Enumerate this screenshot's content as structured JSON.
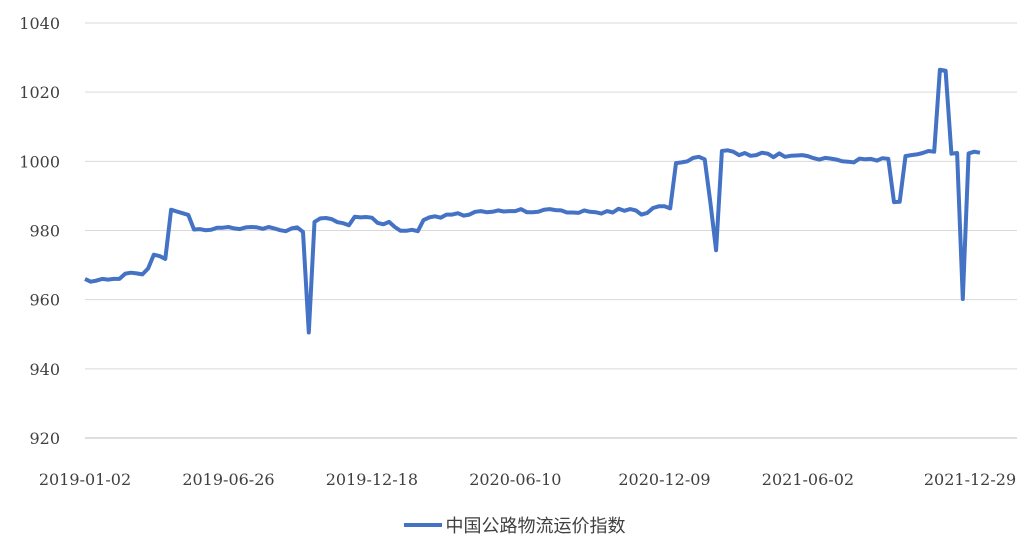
{
  "chart_data": {
    "type": "line",
    "title": "",
    "xlabel": "",
    "ylabel": "",
    "ylim": [
      920,
      1040
    ],
    "y_ticks": [
      920,
      940,
      960,
      980,
      1000,
      1020,
      1040
    ],
    "x_start": "2019-01-02",
    "x_end": "2022-01-26",
    "x_tick_labels": [
      "2019-01-02",
      "2019-06-26",
      "2019-12-18",
      "2020-06-10",
      "2020-12-09",
      "2021-06-02",
      "2021-12-29"
    ],
    "grid": "horizontal",
    "legend_position": "bottom",
    "line_color": "#4472C4",
    "series": [
      {
        "name": "中国公路物流运价指数",
        "points": [
          [
            "2019-01-02",
            966.0
          ],
          [
            "2019-01-09",
            965.2
          ],
          [
            "2019-01-16",
            965.5
          ],
          [
            "2019-01-23",
            966.0
          ],
          [
            "2019-01-30",
            965.8
          ],
          [
            "2019-02-06",
            966.0
          ],
          [
            "2019-02-13",
            966.0
          ],
          [
            "2019-02-20",
            967.5
          ],
          [
            "2019-02-27",
            967.8
          ],
          [
            "2019-03-06",
            967.6
          ],
          [
            "2019-03-13",
            967.3
          ],
          [
            "2019-03-20",
            969.0
          ],
          [
            "2019-03-27",
            973.0
          ],
          [
            "2019-04-03",
            972.6
          ],
          [
            "2019-04-10",
            971.8
          ],
          [
            "2019-04-17",
            986.0
          ],
          [
            "2019-04-24",
            985.5
          ],
          [
            "2019-05-01",
            985.0
          ],
          [
            "2019-05-08",
            984.5
          ],
          [
            "2019-05-15",
            980.3
          ],
          [
            "2019-05-22",
            980.4
          ],
          [
            "2019-05-29",
            980.1
          ],
          [
            "2019-06-05",
            980.2
          ],
          [
            "2019-06-12",
            980.8
          ],
          [
            "2019-06-19",
            980.8
          ],
          [
            "2019-06-26",
            981.0
          ],
          [
            "2019-07-03",
            980.6
          ],
          [
            "2019-07-10",
            980.4
          ],
          [
            "2019-07-17",
            980.9
          ],
          [
            "2019-07-24",
            981.0
          ],
          [
            "2019-07-31",
            980.9
          ],
          [
            "2019-08-07",
            980.5
          ],
          [
            "2019-08-14",
            981.0
          ],
          [
            "2019-08-21",
            980.6
          ],
          [
            "2019-08-28",
            980.1
          ],
          [
            "2019-09-04",
            979.8
          ],
          [
            "2019-09-11",
            980.6
          ],
          [
            "2019-09-18",
            980.9
          ],
          [
            "2019-09-25",
            979.6
          ],
          [
            "2019-10-02",
            950.5
          ],
          [
            "2019-10-09",
            982.5
          ],
          [
            "2019-10-16",
            983.5
          ],
          [
            "2019-10-23",
            983.6
          ],
          [
            "2019-10-30",
            983.3
          ],
          [
            "2019-11-06",
            982.4
          ],
          [
            "2019-11-13",
            982.1
          ],
          [
            "2019-11-20",
            981.5
          ],
          [
            "2019-11-27",
            984.0
          ],
          [
            "2019-12-04",
            983.8
          ],
          [
            "2019-12-11",
            983.9
          ],
          [
            "2019-12-18",
            983.7
          ],
          [
            "2019-12-25",
            982.2
          ],
          [
            "2020-01-01",
            981.8
          ],
          [
            "2020-01-08",
            982.5
          ],
          [
            "2020-01-15",
            981.0
          ],
          [
            "2020-01-22",
            979.9
          ],
          [
            "2020-01-29",
            979.9
          ],
          [
            "2020-02-05",
            980.2
          ],
          [
            "2020-02-12",
            979.8
          ],
          [
            "2020-02-19",
            983.0
          ],
          [
            "2020-02-26",
            983.8
          ],
          [
            "2020-03-04",
            984.1
          ],
          [
            "2020-03-11",
            983.7
          ],
          [
            "2020-03-18",
            984.6
          ],
          [
            "2020-03-25",
            984.6
          ],
          [
            "2020-04-01",
            985.0
          ],
          [
            "2020-04-08",
            984.3
          ],
          [
            "2020-04-15",
            984.6
          ],
          [
            "2020-04-22",
            985.4
          ],
          [
            "2020-04-29",
            985.6
          ],
          [
            "2020-05-06",
            985.3
          ],
          [
            "2020-05-13",
            985.4
          ],
          [
            "2020-05-20",
            985.8
          ],
          [
            "2020-05-27",
            985.5
          ],
          [
            "2020-06-03",
            985.6
          ],
          [
            "2020-06-10",
            985.6
          ],
          [
            "2020-06-17",
            986.2
          ],
          [
            "2020-06-24",
            985.3
          ],
          [
            "2020-07-01",
            985.3
          ],
          [
            "2020-07-08",
            985.4
          ],
          [
            "2020-07-15",
            986.0
          ],
          [
            "2020-07-22",
            986.2
          ],
          [
            "2020-07-29",
            985.9
          ],
          [
            "2020-08-05",
            985.8
          ],
          [
            "2020-08-12",
            985.2
          ],
          [
            "2020-08-19",
            985.2
          ],
          [
            "2020-08-26",
            985.1
          ],
          [
            "2020-09-02",
            985.8
          ],
          [
            "2020-09-09",
            985.4
          ],
          [
            "2020-09-16",
            985.3
          ],
          [
            "2020-09-23",
            984.9
          ],
          [
            "2020-09-30",
            985.6
          ],
          [
            "2020-10-07",
            985.2
          ],
          [
            "2020-10-14",
            986.3
          ],
          [
            "2020-10-21",
            985.7
          ],
          [
            "2020-10-28",
            986.2
          ],
          [
            "2020-11-04",
            985.8
          ],
          [
            "2020-11-11",
            984.6
          ],
          [
            "2020-11-18",
            985.1
          ],
          [
            "2020-11-25",
            986.5
          ],
          [
            "2020-12-02",
            987.0
          ],
          [
            "2020-12-09",
            987.0
          ],
          [
            "2020-12-16",
            986.4
          ],
          [
            "2020-12-23",
            999.5
          ],
          [
            "2020-12-30",
            999.7
          ],
          [
            "2021-01-06",
            1000.0
          ],
          [
            "2021-01-13",
            1001.0
          ],
          [
            "2021-01-20",
            1001.3
          ],
          [
            "2021-01-27",
            1000.6
          ],
          [
            "2021-02-03",
            988.0
          ],
          [
            "2021-02-10",
            974.3
          ],
          [
            "2021-02-17",
            1003.0
          ],
          [
            "2021-02-24",
            1003.2
          ],
          [
            "2021-03-03",
            1002.8
          ],
          [
            "2021-03-10",
            1001.8
          ],
          [
            "2021-03-17",
            1002.4
          ],
          [
            "2021-03-24",
            1001.6
          ],
          [
            "2021-03-31",
            1001.8
          ],
          [
            "2021-04-07",
            1002.5
          ],
          [
            "2021-04-14",
            1002.2
          ],
          [
            "2021-04-21",
            1001.2
          ],
          [
            "2021-04-28",
            1002.3
          ],
          [
            "2021-05-05",
            1001.3
          ],
          [
            "2021-05-12",
            1001.6
          ],
          [
            "2021-05-19",
            1001.7
          ],
          [
            "2021-05-26",
            1001.8
          ],
          [
            "2021-06-02",
            1001.5
          ],
          [
            "2021-06-09",
            1000.9
          ],
          [
            "2021-06-16",
            1000.5
          ],
          [
            "2021-06-23",
            1001.0
          ],
          [
            "2021-06-30",
            1000.8
          ],
          [
            "2021-07-07",
            1000.5
          ],
          [
            "2021-07-14",
            1000.0
          ],
          [
            "2021-07-21",
            999.9
          ],
          [
            "2021-07-28",
            999.7
          ],
          [
            "2021-08-04",
            1000.8
          ],
          [
            "2021-08-11",
            1000.6
          ],
          [
            "2021-08-18",
            1000.7
          ],
          [
            "2021-08-25",
            1000.2
          ],
          [
            "2021-09-01",
            1000.9
          ],
          [
            "2021-09-08",
            1000.7
          ],
          [
            "2021-09-15",
            988.2
          ],
          [
            "2021-09-22",
            988.3
          ],
          [
            "2021-09-29",
            1001.5
          ],
          [
            "2021-10-06",
            1001.8
          ],
          [
            "2021-10-13",
            1002.0
          ],
          [
            "2021-10-20",
            1002.4
          ],
          [
            "2021-10-27",
            1003.0
          ],
          [
            "2021-11-03",
            1002.8
          ],
          [
            "2021-11-10",
            1026.5
          ],
          [
            "2021-11-17",
            1026.2
          ],
          [
            "2021-11-24",
            1002.2
          ],
          [
            "2021-12-01",
            1002.4
          ],
          [
            "2021-12-08",
            960.2
          ],
          [
            "2021-12-15",
            1002.3
          ],
          [
            "2021-12-22",
            1002.8
          ],
          [
            "2021-12-29",
            1002.5
          ]
        ]
      }
    ]
  }
}
